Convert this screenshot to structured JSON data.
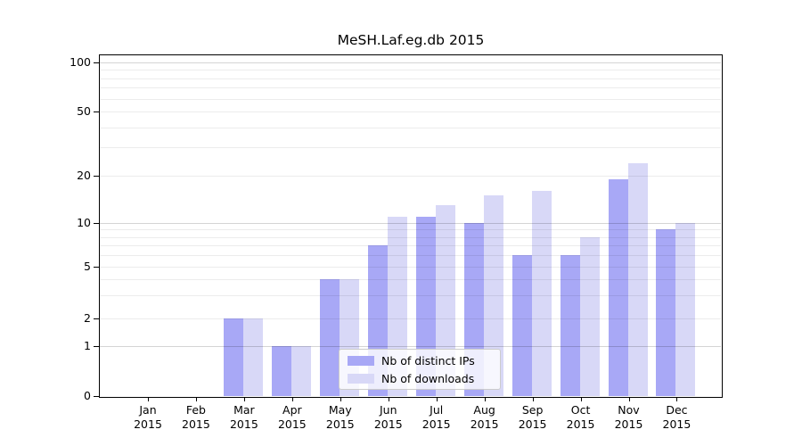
{
  "figure": {
    "background": "#ffffff"
  },
  "chart_data": {
    "type": "bar",
    "title": "MeSH.Laf.eg.db 2015",
    "categories": [
      "Jan 2015",
      "Feb 2015",
      "Mar 2015",
      "Apr 2015",
      "May 2015",
      "Jun 2015",
      "Jul 2015",
      "Aug 2015",
      "Sep 2015",
      "Oct 2015",
      "Nov 2015",
      "Dec 2015"
    ],
    "series": [
      {
        "name": "Nb of distinct IPs",
        "color": "#a8a8f6",
        "values": [
          0,
          0,
          2,
          1,
          4,
          7,
          11,
          10,
          6,
          6,
          19,
          9
        ]
      },
      {
        "name": "Nb of downloads",
        "color": "#d8d8f7",
        "values": [
          0,
          0,
          2,
          1,
          4,
          11,
          13,
          15,
          16,
          8,
          24,
          10
        ]
      }
    ],
    "xlabel": "",
    "ylabel": "",
    "yticks": [
      0,
      1,
      2,
      5,
      10,
      20,
      50,
      100
    ],
    "ytick_labels": [
      "0",
      "1",
      "2",
      "5",
      "10",
      "20",
      "50",
      "100"
    ],
    "minor_grid_values": [
      2,
      3,
      4,
      5,
      6,
      7,
      8,
      9,
      20,
      30,
      40,
      50,
      60,
      70,
      80,
      90
    ],
    "decade_grid_values": [
      1,
      10,
      100
    ],
    "scale": "log-like (compressed decades, zero baseline)",
    "ylim": [
      0,
      115
    ],
    "grid": "on",
    "legend_position": "bottom-center"
  }
}
